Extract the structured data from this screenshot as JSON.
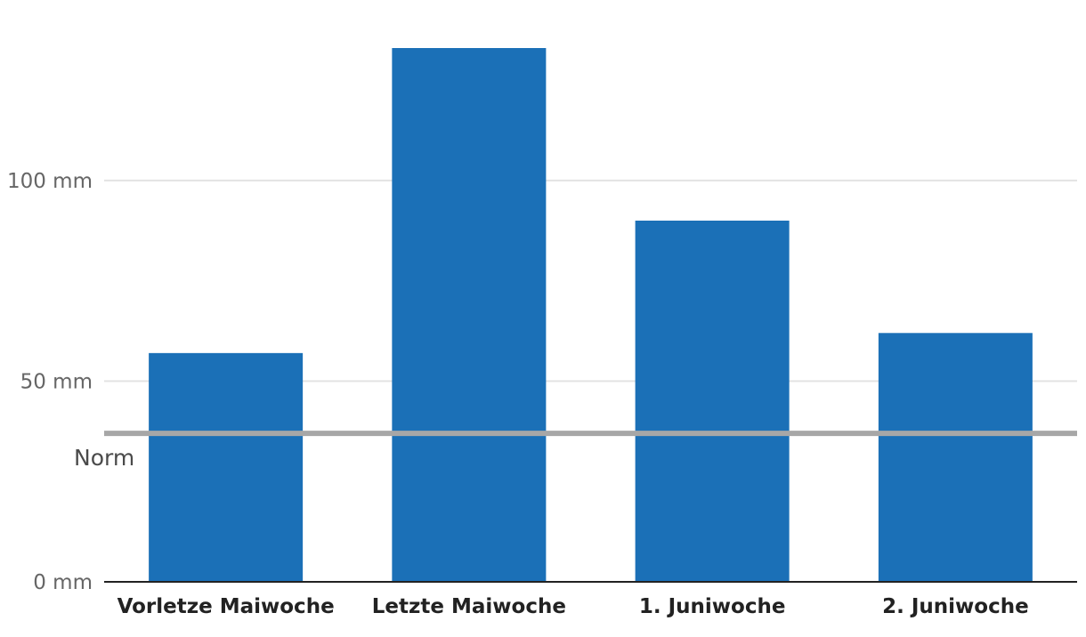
{
  "chart_data": {
    "type": "bar",
    "title": "",
    "xlabel": "",
    "ylabel": "",
    "categories": [
      "Vorletze Maiwoche",
      "Letzte Maiwoche",
      "1. Juniwoche",
      "2. Juniwoche"
    ],
    "values": [
      57,
      133,
      90,
      62
    ],
    "unit": "mm",
    "ylim": [
      0,
      133
    ],
    "yticks": [
      0,
      50,
      100
    ],
    "ytick_labels": [
      "0 mm",
      "50 mm",
      "100 mm"
    ],
    "grid": true,
    "bar_color": "#1b70b7",
    "reference_line": {
      "label": "Norm",
      "value": 37,
      "color": "#a7a7a7"
    }
  }
}
